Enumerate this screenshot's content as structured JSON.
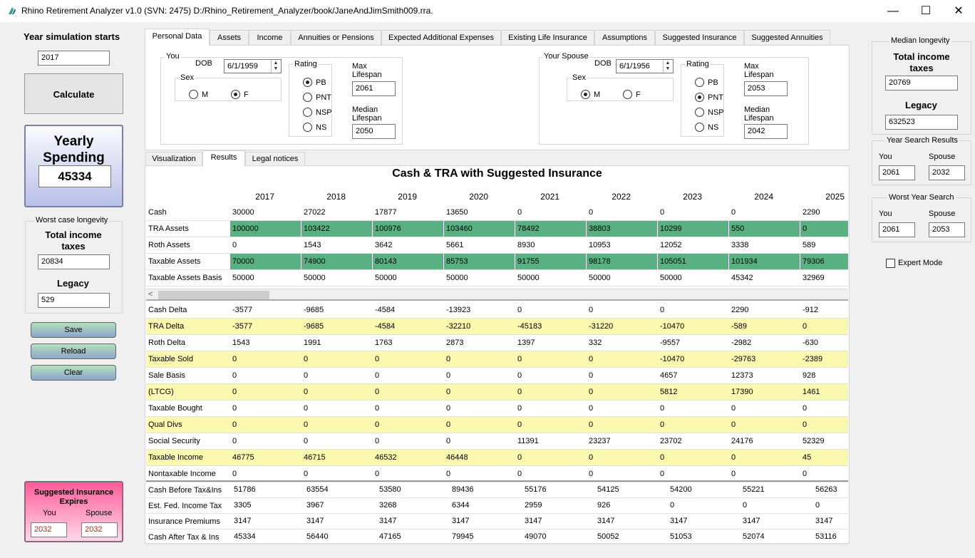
{
  "window": {
    "title": "Rhino Retirement Analyzer v1.0 (SVN: 2475) D:/Rhino_Retirement_Analyzer/book/JaneAndJimSmith009.rra.",
    "min": "—",
    "max": "☐",
    "close": "✕"
  },
  "left": {
    "year_label": "Year simulation starts",
    "year_value": "2017",
    "calculate": "Calculate",
    "yearly_spending_label": "Yearly Spending",
    "yearly_spending_value": "45334",
    "worst_group": "Worst case longevity",
    "total_income_taxes_label": "Total income taxes",
    "total_income_taxes": "20834",
    "legacy_label": "Legacy",
    "legacy": "529",
    "save": "Save",
    "reload": "Reload",
    "clear": "Clear",
    "ins_title": "Suggested Insurance Expires",
    "ins_you_label": "You",
    "ins_spouse_label": "Spouse",
    "ins_you": "2032",
    "ins_spouse": "2032"
  },
  "tabs": [
    "Personal Data",
    "Income",
    "Annuities or Pensions",
    "Expected Additional Expenses",
    "Existing Life Insurance",
    "Assumptions",
    "Suggested Insurance",
    "Suggested Annuities",
    "Assets"
  ],
  "you": {
    "group": "You",
    "dob_label": "DOB",
    "dob": "6/1/1959",
    "sex_label": "Sex",
    "m": "M",
    "f": "F",
    "sex_selected": "F",
    "rating_label": "Rating",
    "ratings": [
      "PB",
      "PNT",
      "NSP",
      "NS"
    ],
    "rating_selected": "PB",
    "max_lifespan_label": "Max Lifespan",
    "max_lifespan": "2061",
    "median_lifespan_label": "Median Lifespan",
    "median_lifespan": "2050"
  },
  "spouse": {
    "group": "Your Spouse",
    "dob_label": "DOB",
    "dob": "6/1/1956",
    "sex_label": "Sex",
    "m": "M",
    "f": "F",
    "sex_selected": "M",
    "rating_label": "Rating",
    "ratings": [
      "PB",
      "PNT",
      "NSP",
      "NS"
    ],
    "rating_selected": "PNT",
    "max_lifespan_label": "Max Lifespan",
    "max_lifespan": "2053",
    "median_lifespan_label": "Median Lifespan",
    "median_lifespan": "2042"
  },
  "subtabs": [
    "Visualization",
    "Results",
    "Legal notices"
  ],
  "results": {
    "title": "Cash & TRA with Suggested Insurance",
    "years": [
      "2017",
      "2018",
      "2019",
      "2020",
      "2021",
      "2022",
      "2023",
      "2024",
      "2025"
    ],
    "rows": [
      {
        "label": "Cash",
        "style": "white",
        "values": [
          "30000",
          "27022",
          "17877",
          "13650",
          "0",
          "0",
          "0",
          "0",
          "2290"
        ]
      },
      {
        "label": "TRA Assets",
        "style": "green",
        "values": [
          "100000",
          "103422",
          "100976",
          "103460",
          "78492",
          "38803",
          "10299",
          "550",
          "0"
        ]
      },
      {
        "label": "Roth Assets",
        "style": "white",
        "values": [
          "0",
          "1543",
          "3642",
          "5661",
          "8930",
          "10953",
          "12052",
          "3338",
          "589"
        ]
      },
      {
        "label": "Taxable Assets",
        "style": "green",
        "values": [
          "70000",
          "74900",
          "80143",
          "85753",
          "91755",
          "98178",
          "105051",
          "101934",
          "79306"
        ]
      },
      {
        "label": "Taxable Assets Basis",
        "style": "white",
        "values": [
          "50000",
          "50000",
          "50000",
          "50000",
          "50000",
          "50000",
          "50000",
          "45342",
          "32969"
        ]
      }
    ],
    "rows2": [
      {
        "label": "Cash Delta",
        "style": "white",
        "values": [
          "-3577",
          "-9685",
          "-4584",
          "-13923",
          "0",
          "0",
          "0",
          "2290",
          "-912"
        ]
      },
      {
        "label": "TRA Delta",
        "style": "yellow",
        "values": [
          "-3577",
          "-9685",
          "-4584",
          "-32210",
          "-45183",
          "-31220",
          "-10470",
          "-589",
          "0"
        ]
      },
      {
        "label": "Roth Delta",
        "style": "white",
        "values": [
          "1543",
          "1991",
          "1763",
          "2873",
          "1397",
          "332",
          "-9557",
          "-2982",
          "-630"
        ]
      },
      {
        "label": "Taxable Sold",
        "style": "yellow",
        "values": [
          "0",
          "0",
          "0",
          "0",
          "0",
          "0",
          "-10470",
          "-29763",
          "-2389"
        ]
      },
      {
        "label": "Sale Basis",
        "style": "white",
        "values": [
          "0",
          "0",
          "0",
          "0",
          "0",
          "0",
          "4657",
          "12373",
          "928"
        ]
      },
      {
        "label": "(LTCG)",
        "style": "yellow",
        "values": [
          "0",
          "0",
          "0",
          "0",
          "0",
          "0",
          "5812",
          "17390",
          "1461"
        ]
      },
      {
        "label": "Taxable Bought",
        "style": "white",
        "values": [
          "0",
          "0",
          "0",
          "0",
          "0",
          "0",
          "0",
          "0",
          "0"
        ]
      },
      {
        "label": "Qual Divs",
        "style": "yellow",
        "values": [
          "0",
          "0",
          "0",
          "0",
          "0",
          "0",
          "0",
          "0",
          "0"
        ]
      },
      {
        "label": "Social Security",
        "style": "white",
        "values": [
          "0",
          "0",
          "0",
          "0",
          "11391",
          "23237",
          "23702",
          "24176",
          "52329"
        ]
      },
      {
        "label": "Taxable Income",
        "style": "yellow",
        "values": [
          "46775",
          "46715",
          "46532",
          "46448",
          "0",
          "0",
          "0",
          "0",
          "45"
        ]
      },
      {
        "label": "Nontaxable Income",
        "style": "white",
        "values": [
          "0",
          "0",
          "0",
          "0",
          "0",
          "0",
          "0",
          "0",
          "0"
        ]
      }
    ],
    "rows3": [
      {
        "label": "Cash Before Tax&Ins",
        "values": [
          "51786",
          "63554",
          "53580",
          "89436",
          "55176",
          "54125",
          "54200",
          "55221",
          "56263"
        ]
      },
      {
        "label": "Est. Fed.  Income Tax",
        "values": [
          "3305",
          "3967",
          "3268",
          "6344",
          "2959",
          "926",
          "0",
          "0",
          "0"
        ]
      },
      {
        "label": "Insurance  Premiums",
        "values": [
          "3147",
          "3147",
          "3147",
          "3147",
          "3147",
          "3147",
          "3147",
          "3147",
          "3147"
        ]
      },
      {
        "label": "Cash After  Tax & Ins",
        "values": [
          "45334",
          "56440",
          "47165",
          "79945",
          "49070",
          "50052",
          "51053",
          "52074",
          "53116"
        ]
      }
    ]
  },
  "right": {
    "median_group": "Median longevity",
    "total_income_taxes_label": "Total income taxes",
    "total_income_taxes": "20769",
    "legacy_label": "Legacy",
    "legacy": "632523",
    "yearsearch_group": "Year Search Results",
    "you_label": "You",
    "spouse_label": "Spouse",
    "ys_you": "2061",
    "ys_spouse": "2032",
    "worst_group": "Worst Year Search",
    "wy_you": "2061",
    "wy_spouse": "2053",
    "expert": "Expert Mode"
  }
}
